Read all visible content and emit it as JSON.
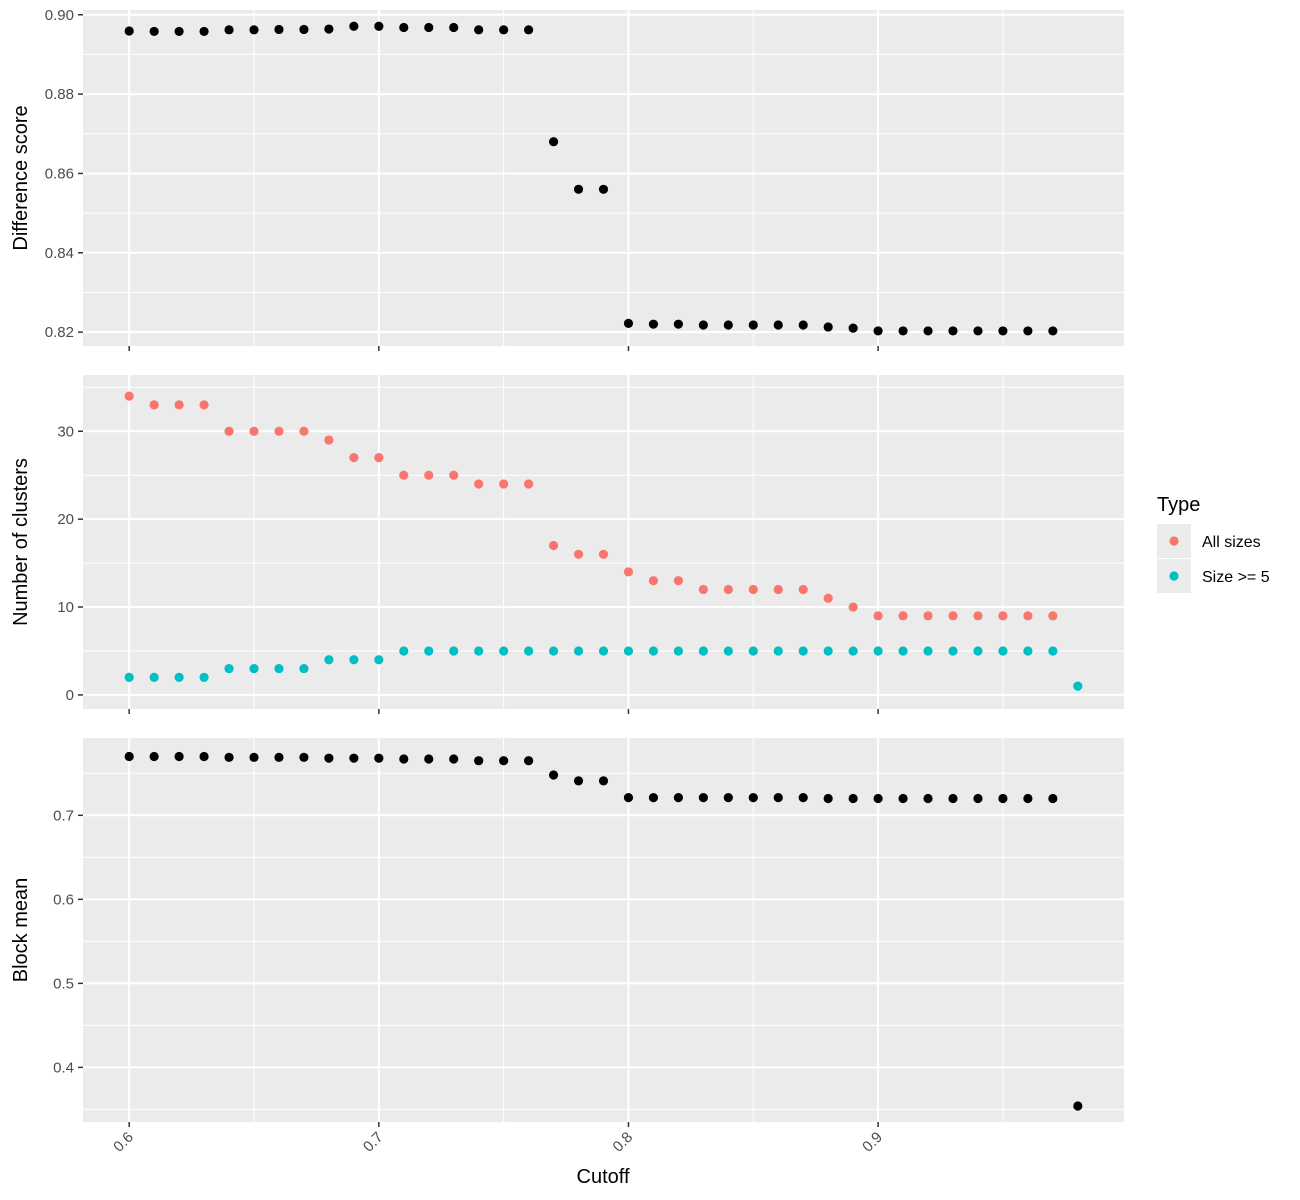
{
  "chart_data": [
    {
      "type": "scatter",
      "panel": "top",
      "ylabel": "Difference score",
      "ylim": [
        0.8165,
        0.9012
      ],
      "yticks": [
        0.82,
        0.84,
        0.86,
        0.88,
        0.9
      ],
      "ytick_labels": [
        "0.82",
        "0.84",
        "0.86",
        "0.88",
        "0.90"
      ],
      "series": [
        {
          "color": "#000000",
          "x": [
            0.6,
            0.61,
            0.62,
            0.63,
            0.64,
            0.65,
            0.66,
            0.67,
            0.68,
            0.69,
            0.7,
            0.71,
            0.72,
            0.73,
            0.74,
            0.75,
            0.76,
            0.77,
            0.78,
            0.79,
            0.8,
            0.81,
            0.82,
            0.83,
            0.84,
            0.85,
            0.86,
            0.87,
            0.88,
            0.89,
            0.9,
            0.91,
            0.92,
            0.93,
            0.94,
            0.95,
            0.96,
            0.97
          ],
          "y": [
            0.8959,
            0.8958,
            0.8958,
            0.8958,
            0.8962,
            0.8962,
            0.8963,
            0.8963,
            0.8964,
            0.8971,
            0.8971,
            0.8968,
            0.8968,
            0.8968,
            0.8962,
            0.8962,
            0.8962,
            0.868,
            0.856,
            0.856,
            0.8222,
            0.822,
            0.822,
            0.8218,
            0.8218,
            0.8218,
            0.8218,
            0.8218,
            0.8213,
            0.821,
            0.8203,
            0.8203,
            0.8203,
            0.8203,
            0.8203,
            0.8203,
            0.8203,
            0.8203
          ]
        }
      ]
    },
    {
      "type": "scatter",
      "panel": "middle",
      "ylabel": "Number of clusters",
      "ylim": [
        -1.6,
        36.4
      ],
      "yticks": [
        0,
        10,
        20,
        30
      ],
      "ytick_labels": [
        "0",
        "10",
        "20",
        "30"
      ],
      "series": [
        {
          "name": "All sizes",
          "color": "#F8766D",
          "x": [
            0.6,
            0.61,
            0.62,
            0.63,
            0.64,
            0.65,
            0.66,
            0.67,
            0.68,
            0.69,
            0.7,
            0.71,
            0.72,
            0.73,
            0.74,
            0.75,
            0.76,
            0.77,
            0.78,
            0.79,
            0.8,
            0.81,
            0.82,
            0.83,
            0.84,
            0.85,
            0.86,
            0.87,
            0.88,
            0.89,
            0.9,
            0.91,
            0.92,
            0.93,
            0.94,
            0.95,
            0.96,
            0.97
          ],
          "y": [
            34,
            33,
            33,
            33,
            30,
            30,
            30,
            30,
            29,
            27,
            27,
            25,
            25,
            25,
            24,
            24,
            24,
            17,
            16,
            16,
            14,
            13,
            13,
            12,
            12,
            12,
            12,
            12,
            11,
            10,
            9,
            9,
            9,
            9,
            9,
            9,
            9,
            9
          ]
        },
        {
          "name": "Size >= 5",
          "color": "#00BFC4",
          "x": [
            0.6,
            0.61,
            0.62,
            0.63,
            0.64,
            0.65,
            0.66,
            0.67,
            0.68,
            0.69,
            0.7,
            0.71,
            0.72,
            0.73,
            0.74,
            0.75,
            0.76,
            0.77,
            0.78,
            0.79,
            0.8,
            0.81,
            0.82,
            0.83,
            0.84,
            0.85,
            0.86,
            0.87,
            0.88,
            0.89,
            0.9,
            0.91,
            0.92,
            0.93,
            0.94,
            0.95,
            0.96,
            0.97,
            0.98
          ],
          "y": [
            2,
            2,
            2,
            2,
            3,
            3,
            3,
            3,
            4,
            4,
            4,
            5,
            5,
            5,
            5,
            5,
            5,
            5,
            5,
            5,
            5,
            5,
            5,
            5,
            5,
            5,
            5,
            5,
            5,
            5,
            5,
            5,
            5,
            5,
            5,
            5,
            5,
            5,
            1
          ]
        }
      ]
    },
    {
      "type": "scatter",
      "panel": "bottom",
      "ylabel": "Block mean",
      "xlabel": "Cutoff",
      "ylim": [
        0.335,
        0.792
      ],
      "yticks": [
        0.4,
        0.5,
        0.6,
        0.7
      ],
      "ytick_labels": [
        "0.4",
        "0.5",
        "0.6",
        "0.7"
      ],
      "series": [
        {
          "color": "#000000",
          "x": [
            0.6,
            0.61,
            0.62,
            0.63,
            0.64,
            0.65,
            0.66,
            0.67,
            0.68,
            0.69,
            0.7,
            0.71,
            0.72,
            0.73,
            0.74,
            0.75,
            0.76,
            0.77,
            0.78,
            0.79,
            0.8,
            0.81,
            0.82,
            0.83,
            0.84,
            0.85,
            0.86,
            0.87,
            0.88,
            0.89,
            0.9,
            0.91,
            0.92,
            0.93,
            0.94,
            0.95,
            0.96,
            0.97,
            0.98
          ],
          "y": [
            0.77,
            0.77,
            0.77,
            0.77,
            0.769,
            0.769,
            0.769,
            0.769,
            0.768,
            0.768,
            0.768,
            0.767,
            0.767,
            0.767,
            0.765,
            0.765,
            0.765,
            0.748,
            0.741,
            0.741,
            0.721,
            0.721,
            0.721,
            0.721,
            0.721,
            0.721,
            0.721,
            0.721,
            0.72,
            0.72,
            0.72,
            0.72,
            0.72,
            0.72,
            0.72,
            0.72,
            0.72,
            0.72,
            0.354
          ]
        }
      ]
    }
  ],
  "x_axis": {
    "label": "Cutoff",
    "xlim": [
      0.5815,
      0.9985
    ],
    "ticks": [
      0.6,
      0.7,
      0.8,
      0.9
    ],
    "tick_labels": [
      "0.6",
      "0.7",
      "0.8",
      "0.9"
    ]
  },
  "legend": {
    "title": "Type",
    "position": "right",
    "items": [
      {
        "label": "All sizes",
        "color": "#F8766D"
      },
      {
        "label": "Size >= 5",
        "color": "#00BFC4"
      }
    ]
  }
}
